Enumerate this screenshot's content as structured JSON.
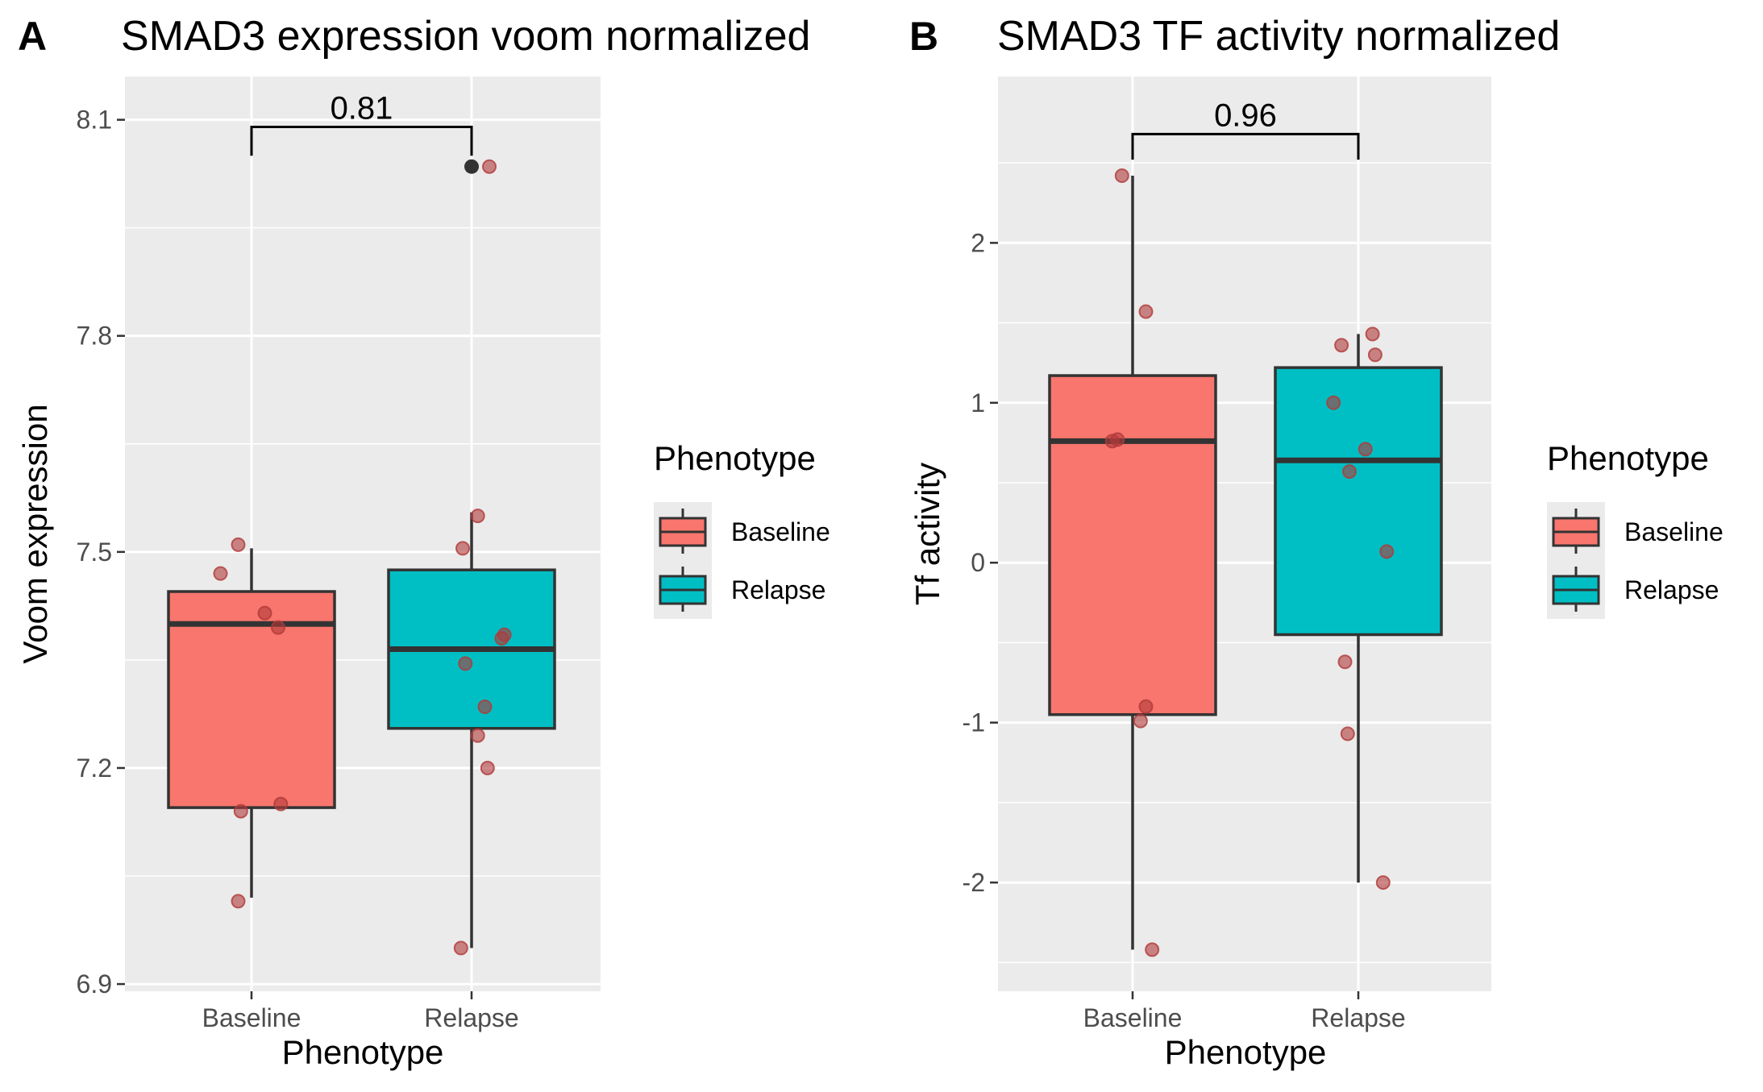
{
  "chart_data": [
    {
      "type": "box",
      "panel_label": "A",
      "title": "SMAD3 expression voom normalized",
      "xlabel": "Phenotype",
      "ylabel": "Voom expression",
      "ylim": [
        6.89,
        8.16
      ],
      "yticks": [
        6.9,
        7.2,
        7.5,
        7.8,
        8.1
      ],
      "ytick_labels": [
        "6.9",
        "7.2",
        "7.5",
        "7.8",
        "8.1"
      ],
      "categories": [
        "Baseline",
        "Relapse"
      ],
      "grid": true,
      "boxes": [
        {
          "name": "Baseline",
          "q1": 7.145,
          "median": 7.4,
          "q3": 7.445,
          "whisker_low": 7.02,
          "whisker_high": 7.505
        },
        {
          "name": "Relapse",
          "q1": 7.255,
          "median": 7.365,
          "q3": 7.475,
          "whisker_low": 6.95,
          "whisker_high": 7.555
        }
      ],
      "outliers": [
        {
          "category": "Relapse",
          "y": 8.035
        }
      ],
      "points": [
        {
          "category": "Baseline",
          "jitter": -0.35,
          "y": 7.47
        },
        {
          "category": "Baseline",
          "jitter": -0.15,
          "y": 7.51
        },
        {
          "category": "Baseline",
          "jitter": 0.15,
          "y": 7.415
        },
        {
          "category": "Baseline",
          "jitter": 0.3,
          "y": 7.395
        },
        {
          "category": "Baseline",
          "jitter": -0.12,
          "y": 7.14
        },
        {
          "category": "Baseline",
          "jitter": 0.33,
          "y": 7.15
        },
        {
          "category": "Baseline",
          "jitter": -0.15,
          "y": 7.015
        },
        {
          "category": "Relapse",
          "jitter": -0.1,
          "y": 7.505
        },
        {
          "category": "Relapse",
          "jitter": 0.07,
          "y": 7.55
        },
        {
          "category": "Relapse",
          "jitter": 0.37,
          "y": 7.385
        },
        {
          "category": "Relapse",
          "jitter": 0.34,
          "y": 7.38
        },
        {
          "category": "Relapse",
          "jitter": -0.07,
          "y": 7.345
        },
        {
          "category": "Relapse",
          "jitter": 0.15,
          "y": 7.285
        },
        {
          "category": "Relapse",
          "jitter": 0.07,
          "y": 7.245
        },
        {
          "category": "Relapse",
          "jitter": 0.18,
          "y": 7.2
        },
        {
          "category": "Relapse",
          "jitter": -0.12,
          "y": 6.95
        },
        {
          "category": "Relapse",
          "jitter": 0.2,
          "y": 8.035
        }
      ],
      "comparison": {
        "from": "Baseline",
        "to": "Relapse",
        "label": "0.81",
        "y": 8.09,
        "tick_low": 8.05
      }
    },
    {
      "type": "box",
      "panel_label": "B",
      "title": "SMAD3 TF activity normalized",
      "xlabel": "Phenotype",
      "ylabel": "Tf activity",
      "ylim": [
        -2.68,
        3.04
      ],
      "yticks": [
        -2,
        -1,
        0,
        1,
        2
      ],
      "ytick_labels": [
        "-2",
        "-1",
        "0",
        "1",
        "2"
      ],
      "categories": [
        "Baseline",
        "Relapse"
      ],
      "grid": true,
      "boxes": [
        {
          "name": "Baseline",
          "q1": -0.95,
          "median": 0.76,
          "q3": 1.17,
          "whisker_low": -2.42,
          "whisker_high": 2.42
        },
        {
          "name": "Relapse",
          "q1": -0.45,
          "median": 0.64,
          "q3": 1.22,
          "whisker_low": -2.0,
          "whisker_high": 1.43
        }
      ],
      "outliers": [],
      "points": [
        {
          "category": "Baseline",
          "jitter": -0.12,
          "y": 2.42
        },
        {
          "category": "Baseline",
          "jitter": 0.15,
          "y": 1.57
        },
        {
          "category": "Baseline",
          "jitter": -0.23,
          "y": 0.76
        },
        {
          "category": "Baseline",
          "jitter": -0.17,
          "y": 0.77
        },
        {
          "category": "Baseline",
          "jitter": 0.15,
          "y": -0.9
        },
        {
          "category": "Baseline",
          "jitter": 0.09,
          "y": -0.99
        },
        {
          "category": "Baseline",
          "jitter": 0.22,
          "y": -2.42
        },
        {
          "category": "Relapse",
          "jitter": -0.19,
          "y": 1.36
        },
        {
          "category": "Relapse",
          "jitter": 0.16,
          "y": 1.43
        },
        {
          "category": "Relapse",
          "jitter": 0.19,
          "y": 1.3
        },
        {
          "category": "Relapse",
          "jitter": -0.28,
          "y": 1.0
        },
        {
          "category": "Relapse",
          "jitter": 0.08,
          "y": 0.71
        },
        {
          "category": "Relapse",
          "jitter": -0.1,
          "y": 0.57
        },
        {
          "category": "Relapse",
          "jitter": 0.32,
          "y": 0.07
        },
        {
          "category": "Relapse",
          "jitter": -0.15,
          "y": -0.62
        },
        {
          "category": "Relapse",
          "jitter": -0.12,
          "y": -1.07
        },
        {
          "category": "Relapse",
          "jitter": 0.28,
          "y": -2.0
        }
      ],
      "comparison": {
        "from": "Baseline",
        "to": "Relapse",
        "label": "0.96",
        "y": 2.68,
        "tick_low": 2.52
      }
    }
  ],
  "legend": {
    "title": "Phenotype",
    "placement": "right",
    "items": [
      {
        "label": "Baseline",
        "color": "#F8766D"
      },
      {
        "label": "Relapse",
        "color": "#00BFC4"
      }
    ]
  },
  "colors": {
    "panel_background": "#EBEBEB",
    "gridline": "#FFFFFF",
    "box_outline": "#333333",
    "point_fill": "#B03A3A",
    "outlier_fill": "#333333",
    "Baseline": "#F8766D",
    "Relapse": "#00BFC4"
  }
}
